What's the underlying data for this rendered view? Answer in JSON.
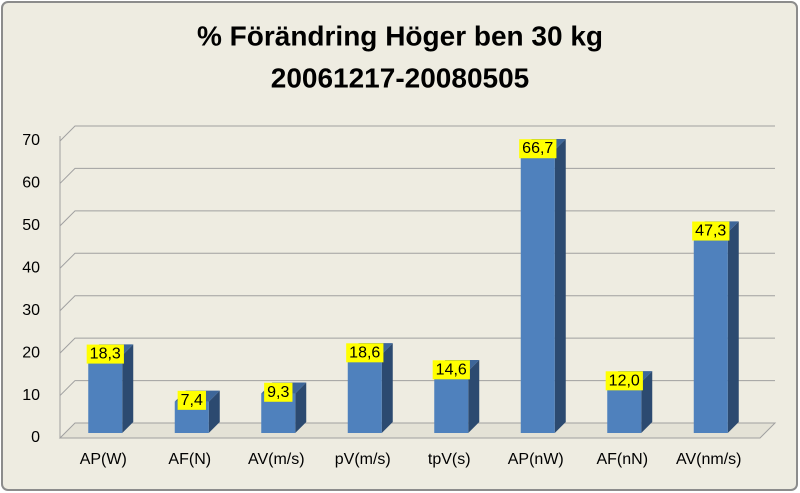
{
  "chart_data": {
    "type": "bar",
    "title": "% Förändring Höger ben 30 kg",
    "subtitle": "20061217-20080505",
    "categories": [
      "AP(W)",
      "AF(N)",
      "AV(m/s)",
      "pV(m/s)",
      "tpV(s)",
      "AP(nW)",
      "AF(nN)",
      "AV(nm/s)"
    ],
    "values": [
      18.3,
      7.4,
      9.3,
      18.6,
      14.6,
      66.7,
      12.0,
      47.3
    ],
    "value_labels": [
      "18,3",
      "7,4",
      "9,3",
      "18,6",
      "14,6",
      "66,7",
      "12,0",
      "47,3"
    ],
    "color": "#4f81bd",
    "ylim": [
      0,
      70
    ],
    "yticks": [
      0,
      10,
      20,
      30,
      40,
      50,
      60,
      70
    ],
    "grid": true
  }
}
